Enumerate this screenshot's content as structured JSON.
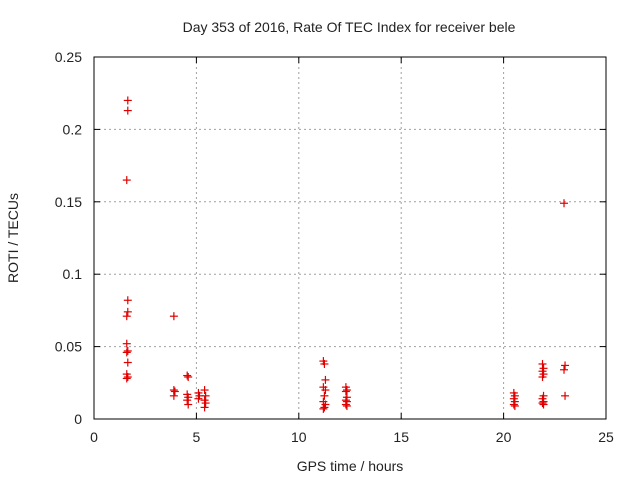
{
  "chart_data": {
    "type": "scatter",
    "title": "Day 353 of 2016, Rate Of TEC Index for receiver bele",
    "xlabel": "GPS time / hours",
    "ylabel": "ROTI / TECUs",
    "xlim": [
      0,
      25
    ],
    "ylim": [
      0,
      0.25
    ],
    "xticks": [
      0,
      5,
      10,
      15,
      20,
      25
    ],
    "xtick_labels": [
      "0",
      "5",
      "10",
      "15",
      "20",
      "25"
    ],
    "yticks": [
      0,
      0.05,
      0.1,
      0.15,
      0.2,
      0.25
    ],
    "ytick_labels": [
      "0",
      "0.05",
      "0.1",
      "0.15",
      "0.2",
      "0.25"
    ],
    "grid": true,
    "marker": "plus",
    "color": "#e00000",
    "series": [
      {
        "points": [
          [
            1.65,
            0.22
          ],
          [
            1.65,
            0.213
          ],
          [
            1.6,
            0.165
          ],
          [
            1.65,
            0.082
          ],
          [
            1.65,
            0.074
          ],
          [
            1.6,
            0.071
          ],
          [
            1.6,
            0.052
          ],
          [
            1.65,
            0.047
          ],
          [
            1.6,
            0.046
          ],
          [
            1.65,
            0.039
          ],
          [
            1.6,
            0.031
          ],
          [
            1.65,
            0.029
          ],
          [
            1.6,
            0.028
          ],
          [
            3.9,
            0.071
          ],
          [
            3.9,
            0.02
          ],
          [
            3.95,
            0.019
          ],
          [
            3.9,
            0.016
          ],
          [
            4.55,
            0.03
          ],
          [
            4.6,
            0.029
          ],
          [
            4.55,
            0.017
          ],
          [
            4.6,
            0.015
          ],
          [
            4.55,
            0.013
          ],
          [
            4.6,
            0.01
          ],
          [
            5.1,
            0.018
          ],
          [
            5.15,
            0.016
          ],
          [
            5.1,
            0.014
          ],
          [
            5.4,
            0.02
          ],
          [
            5.45,
            0.016
          ],
          [
            5.4,
            0.013
          ],
          [
            5.45,
            0.011
          ],
          [
            5.4,
            0.008
          ],
          [
            11.2,
            0.04
          ],
          [
            11.25,
            0.038
          ],
          [
            11.3,
            0.027
          ],
          [
            11.2,
            0.022
          ],
          [
            11.3,
            0.02
          ],
          [
            11.25,
            0.016
          ],
          [
            11.2,
            0.012
          ],
          [
            11.3,
            0.01
          ],
          [
            11.25,
            0.008
          ],
          [
            11.2,
            0.007
          ],
          [
            12.3,
            0.022
          ],
          [
            12.35,
            0.02
          ],
          [
            12.3,
            0.019
          ],
          [
            12.35,
            0.015
          ],
          [
            12.3,
            0.013
          ],
          [
            12.35,
            0.012
          ],
          [
            12.3,
            0.01
          ],
          [
            12.35,
            0.009
          ],
          [
            20.5,
            0.018
          ],
          [
            20.55,
            0.016
          ],
          [
            20.5,
            0.014
          ],
          [
            20.55,
            0.012
          ],
          [
            20.5,
            0.01
          ],
          [
            20.55,
            0.009
          ],
          [
            21.9,
            0.038
          ],
          [
            21.95,
            0.035
          ],
          [
            21.9,
            0.033
          ],
          [
            21.95,
            0.031
          ],
          [
            21.9,
            0.029
          ],
          [
            21.95,
            0.016
          ],
          [
            21.9,
            0.014
          ],
          [
            21.95,
            0.012
          ],
          [
            21.9,
            0.011
          ],
          [
            21.95,
            0.01
          ],
          [
            22.95,
            0.149
          ],
          [
            23.0,
            0.037
          ],
          [
            22.95,
            0.034
          ],
          [
            23.0,
            0.016
          ]
        ]
      }
    ]
  }
}
